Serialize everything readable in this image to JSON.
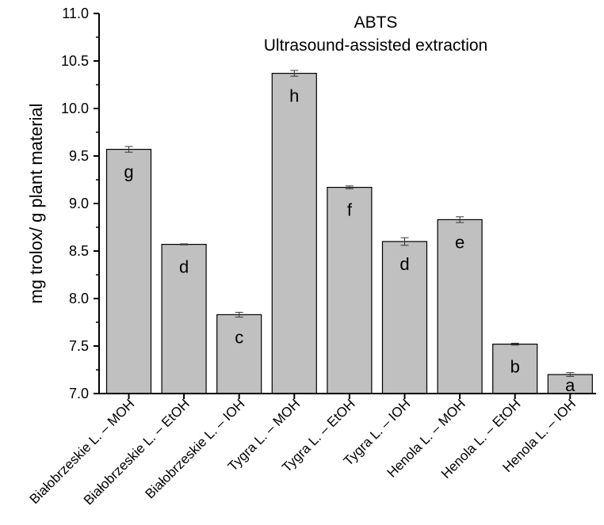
{
  "chart_data": {
    "type": "bar",
    "title": "ABTS",
    "subtitle": "Ultrasound-assisted extraction",
    "xlabel": "",
    "ylabel": "mg trolox/ g plant material",
    "ylim": [
      7.0,
      11.0
    ],
    "yticks": [
      "7.0",
      "7.5",
      "8.0",
      "8.5",
      "9.0",
      "9.5",
      "10.0",
      "10.5",
      "11.0"
    ],
    "categories": [
      "Białobrzeskie L. – MOH",
      "Białobrzeskie L. – EtOH",
      "Białobrzeskie L. – IOH",
      "Tygra L. – MOH",
      "Tygra L. – EtOH",
      "Tygra L. – IOH",
      "Henola L. – MOH",
      "Henola L. – EtOH",
      "Henola L. – IOH"
    ],
    "values": [
      9.57,
      8.57,
      7.83,
      10.37,
      9.17,
      8.6,
      8.83,
      7.52,
      7.2
    ],
    "errors": [
      0.03,
      0.005,
      0.025,
      0.03,
      0.015,
      0.04,
      0.03,
      0.01,
      0.02
    ],
    "letters": [
      "g",
      "d",
      "c",
      "h",
      "f",
      "d",
      "e",
      "b",
      "a"
    ],
    "bar_color": "#c0c0c0",
    "grid": false
  }
}
